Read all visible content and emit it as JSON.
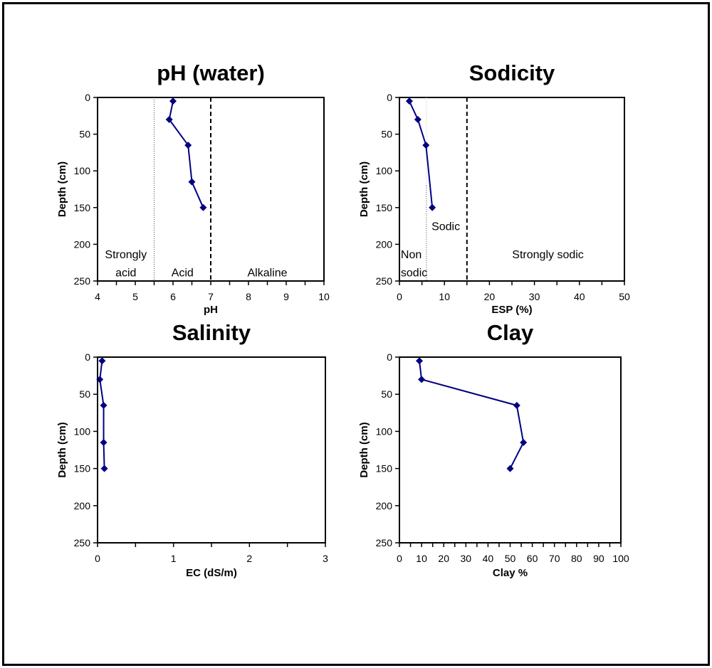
{
  "chart_data": [
    {
      "id": "ph",
      "type": "line",
      "title": "pH (water)",
      "xlabel": "pH",
      "ylabel": "Depth (cm)",
      "xlim": [
        4,
        10
      ],
      "ylim": [
        0,
        250
      ],
      "y_inverted": true,
      "x_ticks": [
        4,
        5,
        6,
        7,
        8,
        9,
        10
      ],
      "x_minor_step": 0.5,
      "y_ticks": [
        0,
        50,
        100,
        150,
        200,
        250
      ],
      "grid": false,
      "series": [
        {
          "name": "pH",
          "color": "#000080",
          "marker": "diamond",
          "x": [
            6.0,
            5.9,
            6.4,
            6.5,
            6.8
          ],
          "y": [
            5,
            30,
            65,
            115,
            150
          ]
        }
      ],
      "reference_lines": [
        {
          "x": 5.5,
          "style": "dotted"
        },
        {
          "x": 7,
          "style": "dashed"
        }
      ],
      "annotations": [
        {
          "text": "Strongly",
          "x": 4.75,
          "y": 213
        },
        {
          "text": "acid",
          "x": 4.75,
          "y": 238
        },
        {
          "text": "Acid",
          "x": 6.25,
          "y": 238
        },
        {
          "text": "Alkaline",
          "x": 8.5,
          "y": 238
        }
      ]
    },
    {
      "id": "sodicity",
      "type": "line",
      "title": "Sodicity",
      "xlabel": "ESP (%)",
      "ylabel": "Depth (cm)",
      "xlim": [
        0,
        50
      ],
      "ylim": [
        0,
        250
      ],
      "y_inverted": true,
      "x_ticks": [
        0,
        10,
        20,
        30,
        40,
        50
      ],
      "x_minor_step": 5,
      "y_ticks": [
        0,
        50,
        100,
        150,
        200,
        250
      ],
      "grid": false,
      "series": [
        {
          "name": "ESP",
          "color": "#000080",
          "marker": "diamond",
          "x": [
            2.2,
            4.1,
            5.9,
            7.3
          ],
          "y": [
            5,
            30,
            65,
            150
          ]
        }
      ],
      "reference_lines": [
        {
          "x": 6,
          "style": "dotted-light",
          "y_from": 0,
          "y_to": 120
        },
        {
          "x": 6,
          "style": "dotted",
          "y_from": 120,
          "y_to": 250
        },
        {
          "x": 15,
          "style": "dashed"
        }
      ],
      "annotations": [
        {
          "text": "Sodic",
          "x": 10.3,
          "y": 175,
          "anchor": "middle"
        },
        {
          "text": "Non",
          "x": 0.3,
          "y": 213,
          "anchor": "start"
        },
        {
          "text": "sodic",
          "x": 0.3,
          "y": 238,
          "anchor": "start"
        },
        {
          "text": "Strongly sodic",
          "x": 33,
          "y": 213,
          "anchor": "middle"
        }
      ]
    },
    {
      "id": "salinity",
      "type": "line",
      "title": "Salinity",
      "xlabel": "EC (dS/m)",
      "ylabel": "Depth (cm)",
      "xlim": [
        0,
        3
      ],
      "ylim": [
        0,
        250
      ],
      "y_inverted": true,
      "x_ticks": [
        0,
        1,
        2,
        3
      ],
      "x_minor_step": 0.5,
      "y_ticks": [
        0,
        50,
        100,
        150,
        200,
        250
      ],
      "grid": false,
      "series": [
        {
          "name": "EC",
          "color": "#000080",
          "marker": "diamond",
          "x": [
            0.06,
            0.03,
            0.08,
            0.08,
            0.09
          ],
          "y": [
            5,
            30,
            65,
            115,
            150
          ]
        }
      ],
      "reference_lines": [],
      "annotations": []
    },
    {
      "id": "clay",
      "type": "line",
      "title": "Clay",
      "xlabel": "Clay %",
      "ylabel": "Depth (cm)",
      "xlim": [
        0,
        100
      ],
      "ylim": [
        0,
        250
      ],
      "y_inverted": true,
      "x_ticks": [
        0,
        10,
        20,
        30,
        40,
        50,
        60,
        70,
        80,
        90,
        100
      ],
      "x_minor_step": 5,
      "y_ticks": [
        0,
        50,
        100,
        150,
        200,
        250
      ],
      "grid": false,
      "series": [
        {
          "name": "Clay",
          "color": "#000080",
          "marker": "diamond",
          "x": [
            9,
            10,
            53,
            56,
            50
          ],
          "y": [
            5,
            30,
            65,
            115,
            150
          ]
        }
      ],
      "reference_lines": [],
      "annotations": []
    }
  ]
}
